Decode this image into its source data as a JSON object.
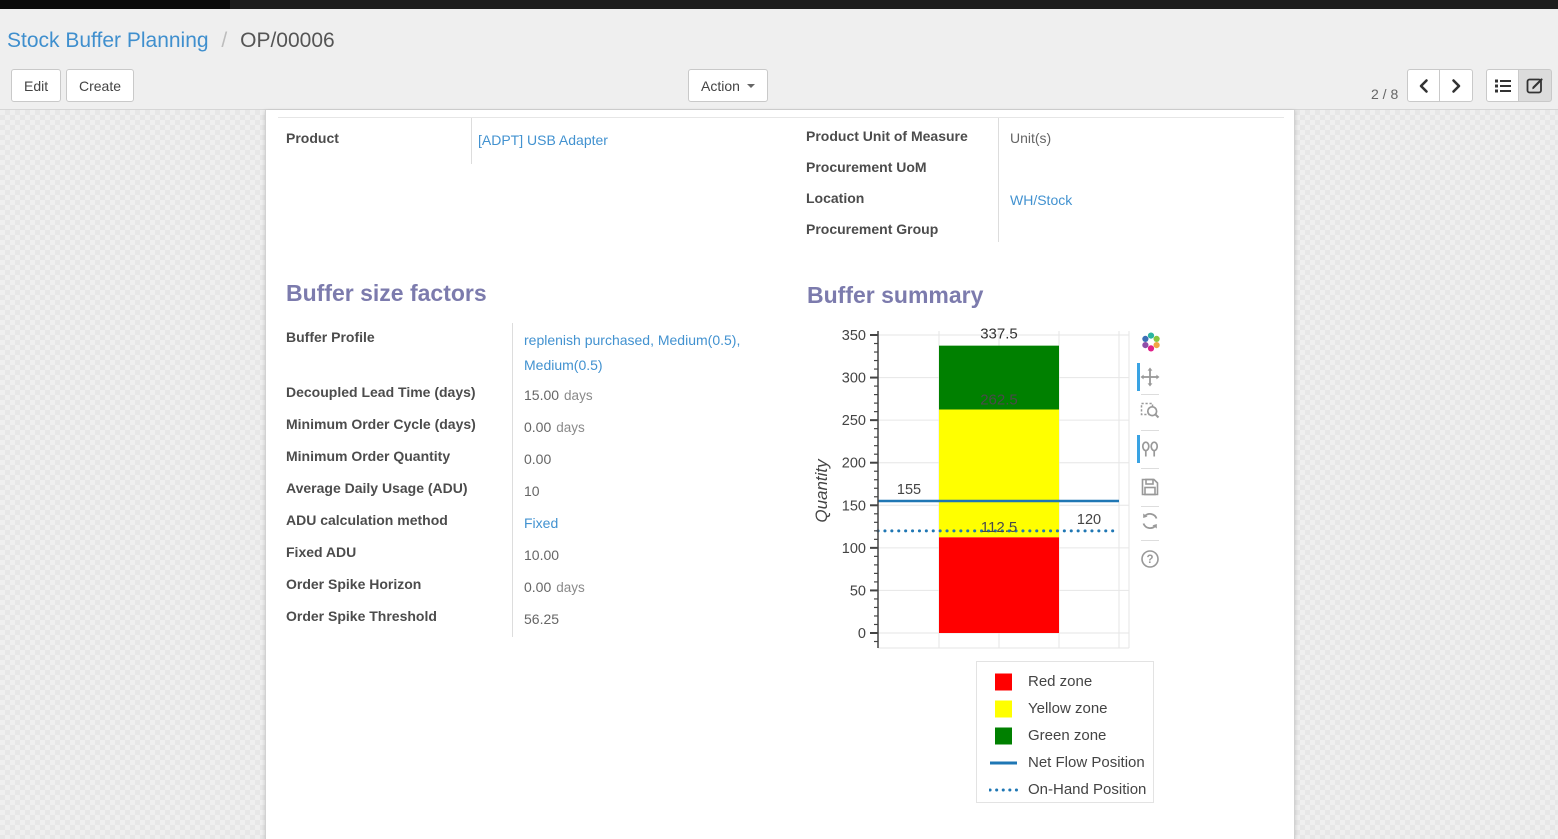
{
  "breadcrumb": {
    "parent": "Stock Buffer Planning",
    "separator": "/",
    "current": "OP/00006"
  },
  "toolbar": {
    "edit_label": "Edit",
    "create_label": "Create",
    "action_label": "Action",
    "pager": "2 / 8",
    "view_switcher": [
      "list",
      "form"
    ],
    "active_view": "form"
  },
  "form": {
    "product_field": {
      "label": "Product",
      "value": "[ADPT] USB Adapter",
      "link": true
    },
    "info_fields": [
      {
        "label": "Product Unit of Measure",
        "value": "Unit(s)",
        "link": false
      },
      {
        "label": "Procurement UoM",
        "value": "",
        "link": false
      },
      {
        "label": "Location",
        "value": "WH/Stock",
        "link": true
      },
      {
        "label": "Procurement Group",
        "value": "",
        "link": false
      }
    ],
    "buffer_factors": {
      "title": "Buffer size factors",
      "fields": [
        {
          "label": "Buffer Profile",
          "value": "replenish purchased, Medium(0.5), Medium(0.5)",
          "link": true
        },
        {
          "label": "Decoupled Lead Time (days)",
          "value": "15.00",
          "unit": "days"
        },
        {
          "label": "Minimum Order Cycle (days)",
          "value": "0.00",
          "unit": "days"
        },
        {
          "label": "Minimum Order Quantity",
          "value": "0.00"
        },
        {
          "label": "Average Daily Usage (ADU)",
          "value": "10"
        },
        {
          "label": "ADU calculation method",
          "value": "Fixed",
          "link": true
        },
        {
          "label": "Fixed ADU",
          "value": "10.00"
        },
        {
          "label": "Order Spike Horizon",
          "value": "0.00",
          "unit": "days"
        },
        {
          "label": "Order Spike Threshold",
          "value": "56.25"
        }
      ]
    },
    "buffer_summary": {
      "title": "Buffer summary"
    }
  },
  "chart_data": {
    "type": "bar",
    "title": "",
    "xlabel": "",
    "ylabel": "Quantity",
    "ylim": [
      0,
      350
    ],
    "ytick_major": 50,
    "ytick_minor": 10,
    "grid": true,
    "zones": [
      {
        "name": "Red zone",
        "from": 0,
        "to": 112.5,
        "color": "#ff0000"
      },
      {
        "name": "Yellow zone",
        "from": 112.5,
        "to": 262.5,
        "color": "#ffff00"
      },
      {
        "name": "Green zone",
        "from": 262.5,
        "to": 337.5,
        "color": "#008000"
      }
    ],
    "reference_lines": [
      {
        "name": "Net Flow Position",
        "value": 155,
        "style": "solid",
        "color": "#1f77b4",
        "label_side": "left"
      },
      {
        "name": "On-Hand Position",
        "value": 120,
        "style": "dotted",
        "color": "#1f77b4",
        "label_side": "right"
      }
    ],
    "shown_labels": [
      337.5,
      262.5,
      112.5,
      155,
      120
    ],
    "legend": [
      "Red zone",
      "Yellow zone",
      "Green zone",
      "Net Flow Position",
      "On-Hand Position"
    ],
    "legend_position": "below-right"
  },
  "chart_toolbar": {
    "icons": [
      "plotly-logo",
      "pan",
      "box-zoom",
      "compare-hover",
      "save",
      "reset-axes",
      "help"
    ],
    "active": [
      "pan",
      "compare-hover"
    ],
    "accent_color": "#3aa3e3"
  },
  "colors": {
    "link": "#4292d0",
    "heading": "#7c7bad",
    "label": "#4c4c4c",
    "red_zone": "#ff0000",
    "yellow_zone": "#ffff00",
    "green_zone": "#008000",
    "line_blue": "#1f77b4"
  }
}
